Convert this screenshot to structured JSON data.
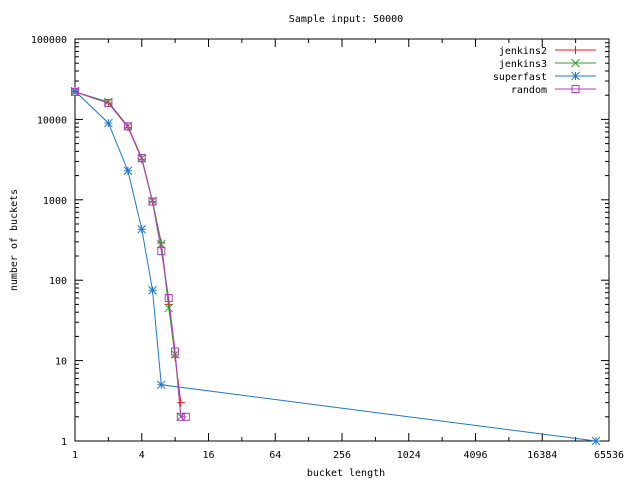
{
  "chart_data": {
    "type": "line",
    "title": "Sample input: 50000",
    "xlabel": "bucket length",
    "ylabel": "number of buckets",
    "x_scale": "log2",
    "y_scale": "log10",
    "xlim": [
      1,
      65536
    ],
    "ylim": [
      1,
      100000
    ],
    "x_ticks": [
      1,
      4,
      16,
      64,
      256,
      1024,
      4096,
      16384,
      65536
    ],
    "x_tick_labels": [
      "1",
      "4",
      "16",
      "64",
      "256",
      "1024",
      "4096",
      "16384",
      "65536"
    ],
    "y_ticks": [
      1,
      10,
      100,
      1000,
      10000,
      100000
    ],
    "y_tick_labels": [
      "1",
      "10",
      "100",
      "1000",
      "10000",
      "100000"
    ],
    "grid": false,
    "legend_position": "top-right",
    "series": [
      {
        "name": "jenkins2",
        "color": "#e41a1c",
        "marker": "plus",
        "x": [
          1,
          2,
          3,
          4,
          5,
          6,
          7,
          8,
          9
        ],
        "y": [
          22000,
          16000,
          8000,
          3200,
          950,
          290,
          50,
          11,
          3
        ]
      },
      {
        "name": "jenkins3",
        "color": "#2ca02c",
        "marker": "cross",
        "x": [
          1,
          2,
          3,
          4,
          5,
          6,
          7,
          8,
          9
        ],
        "y": [
          22000,
          16500,
          8200,
          3300,
          970,
          280,
          45,
          12,
          2
        ]
      },
      {
        "name": "superfast",
        "color": "#1f78c8",
        "marker": "star",
        "x": [
          1,
          2,
          3,
          4,
          5,
          6,
          50000
        ],
        "y": [
          22500,
          9000,
          2300,
          430,
          75,
          5,
          1
        ]
      },
      {
        "name": "random",
        "color": "#b03cc8",
        "marker": "square",
        "x": [
          1,
          2,
          3,
          4,
          5,
          6,
          7,
          8,
          9,
          10
        ],
        "y": [
          22000,
          16000,
          8200,
          3300,
          950,
          230,
          60,
          13,
          2,
          2
        ]
      }
    ]
  }
}
